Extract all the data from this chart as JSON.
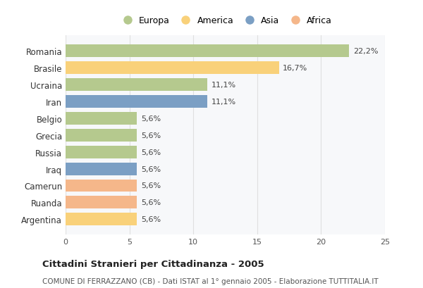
{
  "categories": [
    "Romania",
    "Brasile",
    "Ucraina",
    "Iran",
    "Belgio",
    "Grecia",
    "Russia",
    "Iraq",
    "Camerun",
    "Ruanda",
    "Argentina"
  ],
  "values": [
    22.2,
    16.7,
    11.1,
    11.1,
    5.6,
    5.6,
    5.6,
    5.6,
    5.6,
    5.6,
    5.6
  ],
  "labels": [
    "22,2%",
    "16,7%",
    "11,1%",
    "11,1%",
    "5,6%",
    "5,6%",
    "5,6%",
    "5,6%",
    "5,6%",
    "5,6%",
    "5,6%"
  ],
  "bar_colors": [
    "#b5c98e",
    "#f9d17a",
    "#b5c98e",
    "#7b9fc4",
    "#b5c98e",
    "#b5c98e",
    "#b5c98e",
    "#7b9fc4",
    "#f5b78a",
    "#f5b78a",
    "#f9d17a"
  ],
  "legend_labels": [
    "Europa",
    "America",
    "Asia",
    "Africa"
  ],
  "legend_colors": [
    "#b5c98e",
    "#f9d17a",
    "#7b9fc4",
    "#f5b78a"
  ],
  "xlim": [
    0,
    25
  ],
  "xticks": [
    0,
    5,
    10,
    15,
    20,
    25
  ],
  "title": "Cittadini Stranieri per Cittadinanza - 2005",
  "subtitle": "COMUNE DI FERRAZZANO (CB) - Dati ISTAT al 1° gennaio 2005 - Elaborazione TUTTITALIA.IT",
  "bg_color": "#ffffff",
  "plot_bg_color": "#f7f8fa",
  "grid_color": "#e0e0e0",
  "bar_height": 0.75
}
